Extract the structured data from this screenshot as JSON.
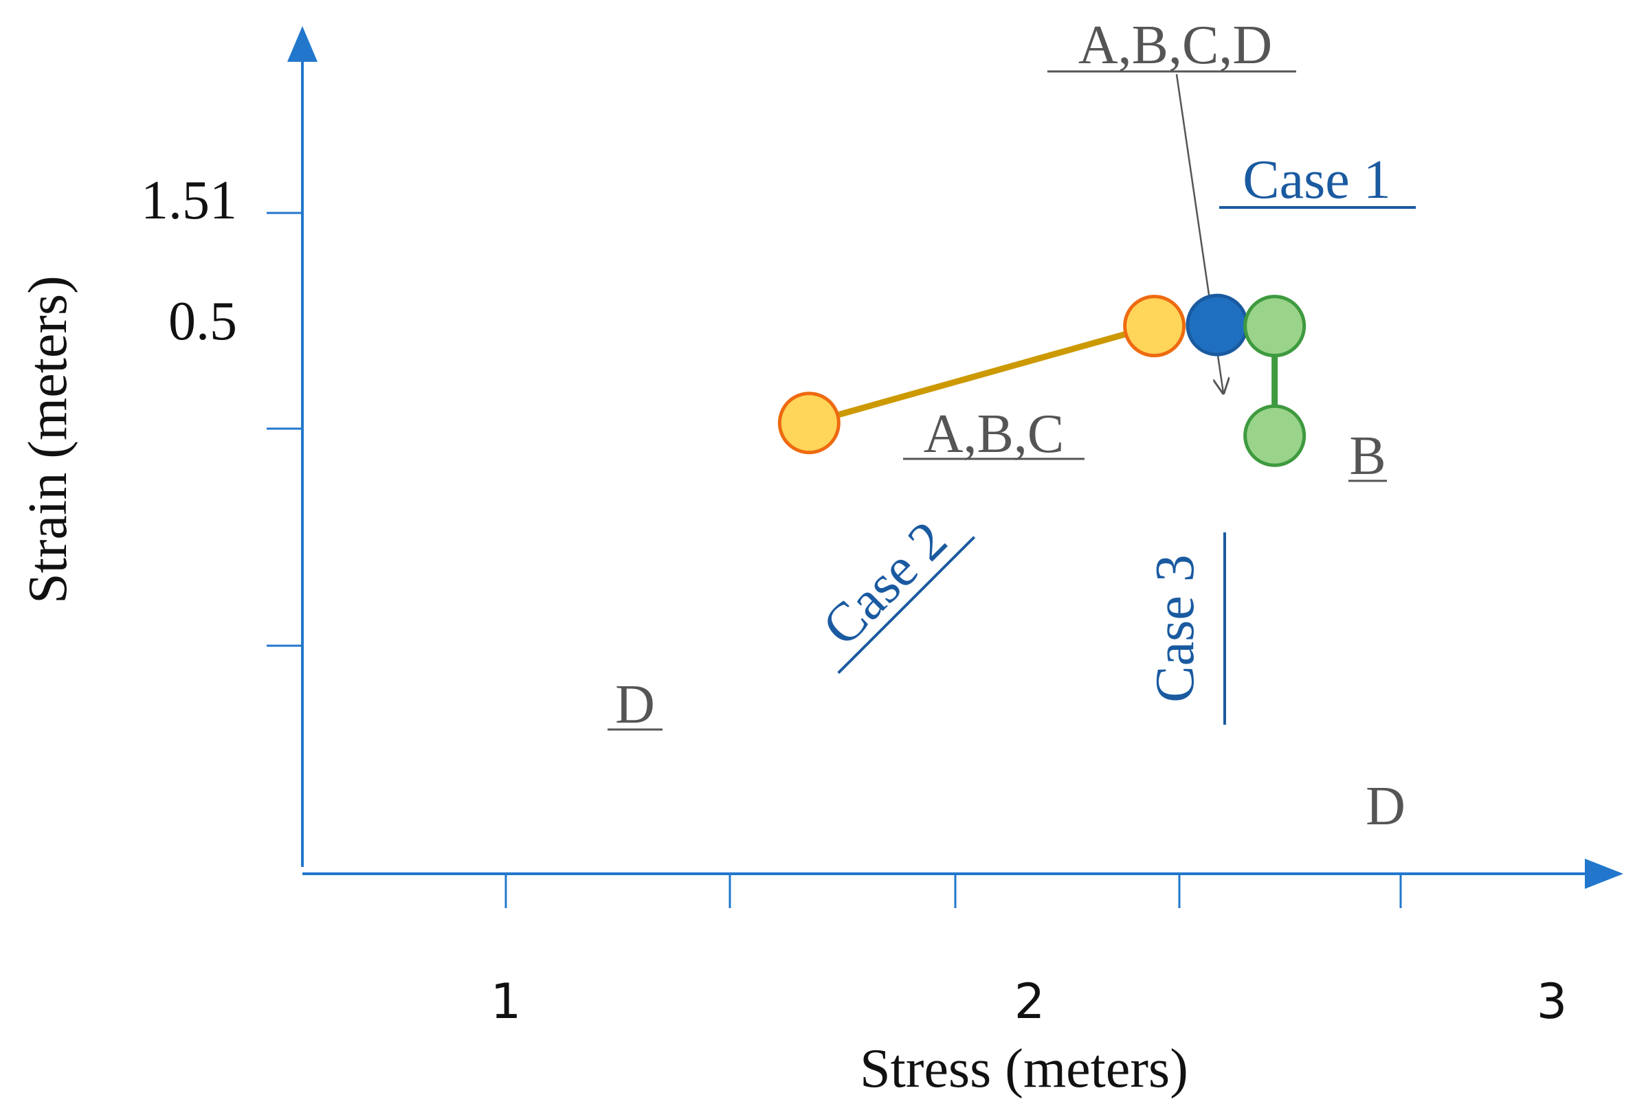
{
  "chart_data": {
    "type": "line",
    "title": "",
    "xlabel": "Stress (meters)",
    "ylabel": "Strain (meters)",
    "x_tick_labels": [
      {
        "value": 1,
        "label": "1"
      },
      {
        "value": 2,
        "label": "2"
      },
      {
        "value": 3,
        "label": "3"
      }
    ],
    "y_tick_labels": [
      {
        "value": 0.5,
        "label": "0.5"
      },
      {
        "value": 1.51,
        "label": "1.51"
      }
    ],
    "series": [
      {
        "name": "Case 2",
        "color": "#CC9900",
        "marker_fill": "#FFD55A",
        "marker_edge": "#EE6A10",
        "points": [
          {
            "x": 1.58,
            "y": -0.44,
            "label": "D"
          },
          {
            "x": 2.24,
            "y": 0.47,
            "label": "A,B,C"
          }
        ]
      },
      {
        "name": "Case 1",
        "color": "#1F6FC0",
        "marker_fill": "#1F6FC0",
        "marker_edge": "#1A5AA0",
        "points": [
          {
            "x": 2.36,
            "y": 0.48,
            "label": "A,B,C,D"
          }
        ]
      },
      {
        "name": "Case 3",
        "color": "#3E9A3E",
        "marker_fill": "#9AD38A",
        "marker_edge": "#3E9A3E",
        "points": [
          {
            "x": 2.47,
            "y": 0.47,
            "label": "B"
          },
          {
            "x": 2.47,
            "y": -0.56,
            "label": "D"
          }
        ]
      }
    ],
    "axis_color": "#2277CC"
  }
}
